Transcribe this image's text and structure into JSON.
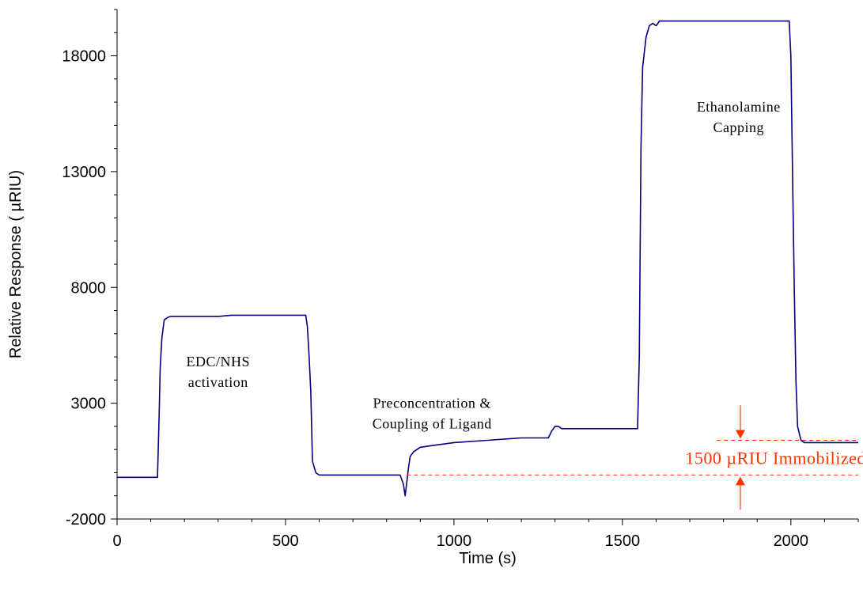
{
  "chart_data": {
    "type": "line",
    "xlabel": "Time (s)",
    "ylabel": "Relative Response ( µRIU)",
    "xlim": [
      0,
      2200
    ],
    "ylim": [
      -2000,
      20000
    ],
    "x_ticks": [
      0,
      500,
      1000,
      1500,
      2000
    ],
    "x_tick_labels": [
      "0",
      "500",
      "1000",
      "1500",
      "2000"
    ],
    "y_ticks": [
      -2000,
      3000,
      8000,
      13000,
      18000
    ],
    "y_tick_labels": [
      "-2000",
      "3000",
      "8000",
      "13000",
      "18000"
    ],
    "grid": false,
    "line_color": "#000080",
    "annotation_color": "#ff3300",
    "series": [
      {
        "x": [
          0,
          60,
          120,
          125,
          128,
          133,
          140,
          150,
          160,
          200,
          300,
          340,
          400,
          470,
          560,
          565,
          570,
          575,
          580,
          590,
          600,
          700,
          800,
          840,
          850,
          855,
          860,
          865,
          870,
          880,
          890,
          900,
          950,
          1000,
          1100,
          1200,
          1280,
          1290,
          1300,
          1310,
          1320,
          1400,
          1500,
          1545,
          1550,
          1555,
          1560,
          1570,
          1580,
          1590,
          1600,
          1610,
          1620,
          1700,
          1800,
          1900,
          1995,
          2000,
          2005,
          2010,
          2015,
          2020,
          2030,
          2040,
          2060,
          2100,
          2200
        ],
        "y": [
          -200,
          -200,
          -200,
          2500,
          4500,
          5800,
          6600,
          6700,
          6750,
          6750,
          6750,
          6800,
          6800,
          6800,
          6800,
          6300,
          5000,
          3500,
          500,
          0,
          -100,
          -100,
          -100,
          -100,
          -500,
          -1000,
          -400,
          200,
          700,
          900,
          1000,
          1100,
          1200,
          1300,
          1400,
          1500,
          1500,
          1800,
          2000,
          2000,
          1900,
          1900,
          1900,
          1900,
          5000,
          14000,
          17500,
          18800,
          19300,
          19400,
          19300,
          19500,
          19500,
          19500,
          19500,
          19500,
          19500,
          18000,
          13000,
          8000,
          4000,
          2000,
          1400,
          1300,
          1300,
          1300,
          1300
        ]
      }
    ],
    "annotations": [
      {
        "lines": [
          "EDC/NHS",
          "activation"
        ],
        "x": 300,
        "y": 4600
      },
      {
        "lines": [
          "Preconcentration &",
          "Coupling of Ligand"
        ],
        "x": 935,
        "y": 2800
      },
      {
        "lines": [
          "Ethanolamine",
          "Capping"
        ],
        "x": 1845,
        "y": 15600
      }
    ],
    "immobilized_label": "1500 µRIU Immobilized",
    "baseline_before": -100,
    "baseline_after": 1400,
    "arrow_x": 1850
  }
}
